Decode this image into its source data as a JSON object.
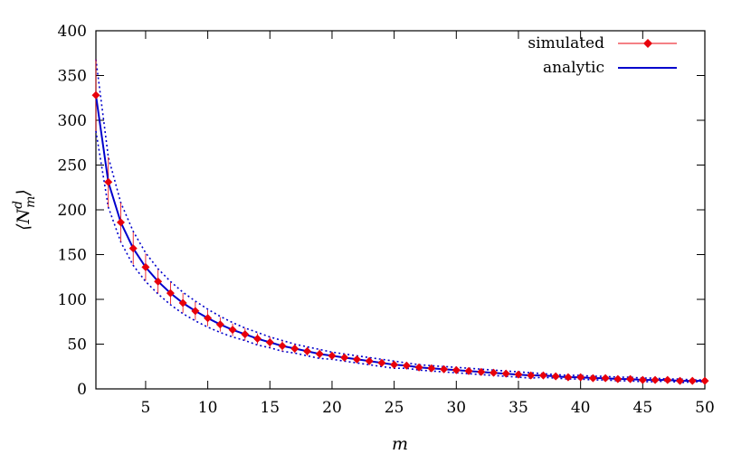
{
  "chart_data": {
    "type": "line",
    "title": "",
    "xlabel": "m",
    "ylabel": "⟨N_m^d⟩",
    "xlim": [
      1,
      50
    ],
    "ylim": [
      0,
      400
    ],
    "x_ticks": [
      5,
      10,
      15,
      20,
      25,
      30,
      35,
      40,
      45,
      50
    ],
    "y_ticks": [
      0,
      50,
      100,
      150,
      200,
      250,
      300,
      350,
      400
    ],
    "grid": false,
    "legend_position": "top-right",
    "x": [
      1,
      2,
      3,
      4,
      5,
      6,
      7,
      8,
      9,
      10,
      11,
      12,
      13,
      14,
      15,
      16,
      17,
      18,
      19,
      20,
      21,
      22,
      23,
      24,
      25,
      26,
      27,
      28,
      29,
      30,
      31,
      32,
      33,
      34,
      35,
      36,
      37,
      38,
      39,
      40,
      41,
      42,
      43,
      44,
      45,
      46,
      47,
      48,
      49,
      50
    ],
    "series": [
      {
        "name": "simulated",
        "color": "#e8000b",
        "marker": "diamond",
        "values": [
          328,
          231,
          186,
          157,
          136,
          120,
          107,
          96,
          87,
          79,
          72,
          66,
          61,
          56,
          52,
          48,
          45,
          42,
          39,
          37,
          35,
          33,
          31,
          29,
          27,
          26,
          24,
          23,
          22,
          21,
          20,
          19,
          18,
          17,
          16,
          15,
          15,
          14,
          13,
          13,
          12,
          12,
          11,
          11,
          10,
          10,
          10,
          9,
          9,
          9
        ],
        "err_low": [
          40,
          28,
          22,
          18,
          15,
          13,
          12,
          11,
          10,
          9,
          8,
          7,
          7,
          6,
          6,
          6,
          5,
          5,
          5,
          4,
          4,
          4,
          4,
          4,
          3,
          3,
          3,
          3,
          3,
          3,
          3,
          3,
          2,
          2,
          2,
          2,
          2,
          2,
          2,
          2,
          2,
          2,
          2,
          2,
          2,
          2,
          2,
          2,
          2,
          2
        ],
        "err_high": [
          40,
          28,
          22,
          18,
          15,
          13,
          12,
          11,
          10,
          9,
          8,
          7,
          7,
          6,
          6,
          6,
          5,
          5,
          5,
          4,
          4,
          4,
          4,
          4,
          3,
          3,
          3,
          3,
          3,
          3,
          3,
          3,
          2,
          2,
          2,
          2,
          2,
          2,
          2,
          2,
          2,
          2,
          2,
          2,
          2,
          2,
          2,
          2,
          2,
          2
        ]
      },
      {
        "name": "analytic",
        "color": "#0000cc",
        "values": [
          328,
          231,
          186,
          157,
          136,
          120,
          107,
          96,
          87,
          79,
          72,
          66,
          61,
          56,
          52,
          48,
          45,
          42,
          39,
          37,
          35,
          33,
          31,
          29,
          27,
          26,
          24,
          23,
          22,
          21,
          20,
          19,
          18,
          17,
          16,
          15,
          15,
          14,
          13,
          13,
          12,
          12,
          11,
          11,
          10,
          10,
          10,
          9,
          9,
          9
        ],
        "band_upper": [
          368,
          259,
          208,
          176,
          152,
          134,
          120,
          108,
          98,
          89,
          81,
          74,
          68,
          63,
          58,
          54,
          50,
          47,
          44,
          41,
          39,
          37,
          35,
          33,
          31,
          29,
          27,
          26,
          25,
          24,
          23,
          22,
          21,
          20,
          19,
          18,
          17,
          16,
          15,
          15,
          14,
          14,
          13,
          13,
          12,
          12,
          11,
          11,
          10,
          10
        ],
        "band_lower": [
          288,
          203,
          164,
          138,
          120,
          106,
          94,
          84,
          76,
          69,
          63,
          58,
          54,
          49,
          46,
          42,
          40,
          37,
          34,
          33,
          31,
          29,
          27,
          25,
          23,
          23,
          21,
          20,
          19,
          18,
          17,
          16,
          15,
          14,
          13,
          12,
          13,
          12,
          11,
          11,
          10,
          10,
          9,
          9,
          8,
          8,
          9,
          7,
          8,
          8
        ]
      }
    ]
  }
}
